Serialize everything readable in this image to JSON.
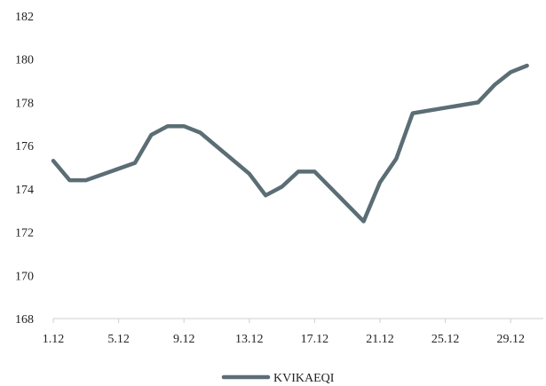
{
  "chart_data": {
    "type": "line",
    "title": "",
    "xlabel": "",
    "ylabel": "",
    "x_tick_labels": [
      "1.12",
      "5.12",
      "9.12",
      "13.12",
      "17.12",
      "21.12",
      "25.12",
      "29.12"
    ],
    "x_tick_days": [
      1,
      5,
      9,
      13,
      17,
      21,
      25,
      29
    ],
    "xlim": [
      1,
      31
    ],
    "ylim": [
      168,
      182
    ],
    "y_ticks": [
      168,
      170,
      172,
      174,
      176,
      178,
      180,
      182
    ],
    "grid": false,
    "legend_position": "bottom",
    "series": [
      {
        "name": "KVIKAEQI",
        "color": "#5b6d75",
        "x": [
          1,
          2,
          3,
          6,
          7,
          8,
          9,
          10,
          13,
          14,
          15,
          16,
          17,
          20,
          21,
          22,
          23,
          27,
          28,
          29,
          30
        ],
        "y": [
          175.3,
          174.4,
          174.4,
          175.2,
          176.5,
          176.9,
          176.9,
          176.6,
          174.7,
          173.7,
          174.1,
          174.8,
          174.8,
          172.5,
          174.3,
          175.4,
          177.5,
          178.0,
          178.8,
          179.4,
          179.7
        ]
      }
    ]
  }
}
